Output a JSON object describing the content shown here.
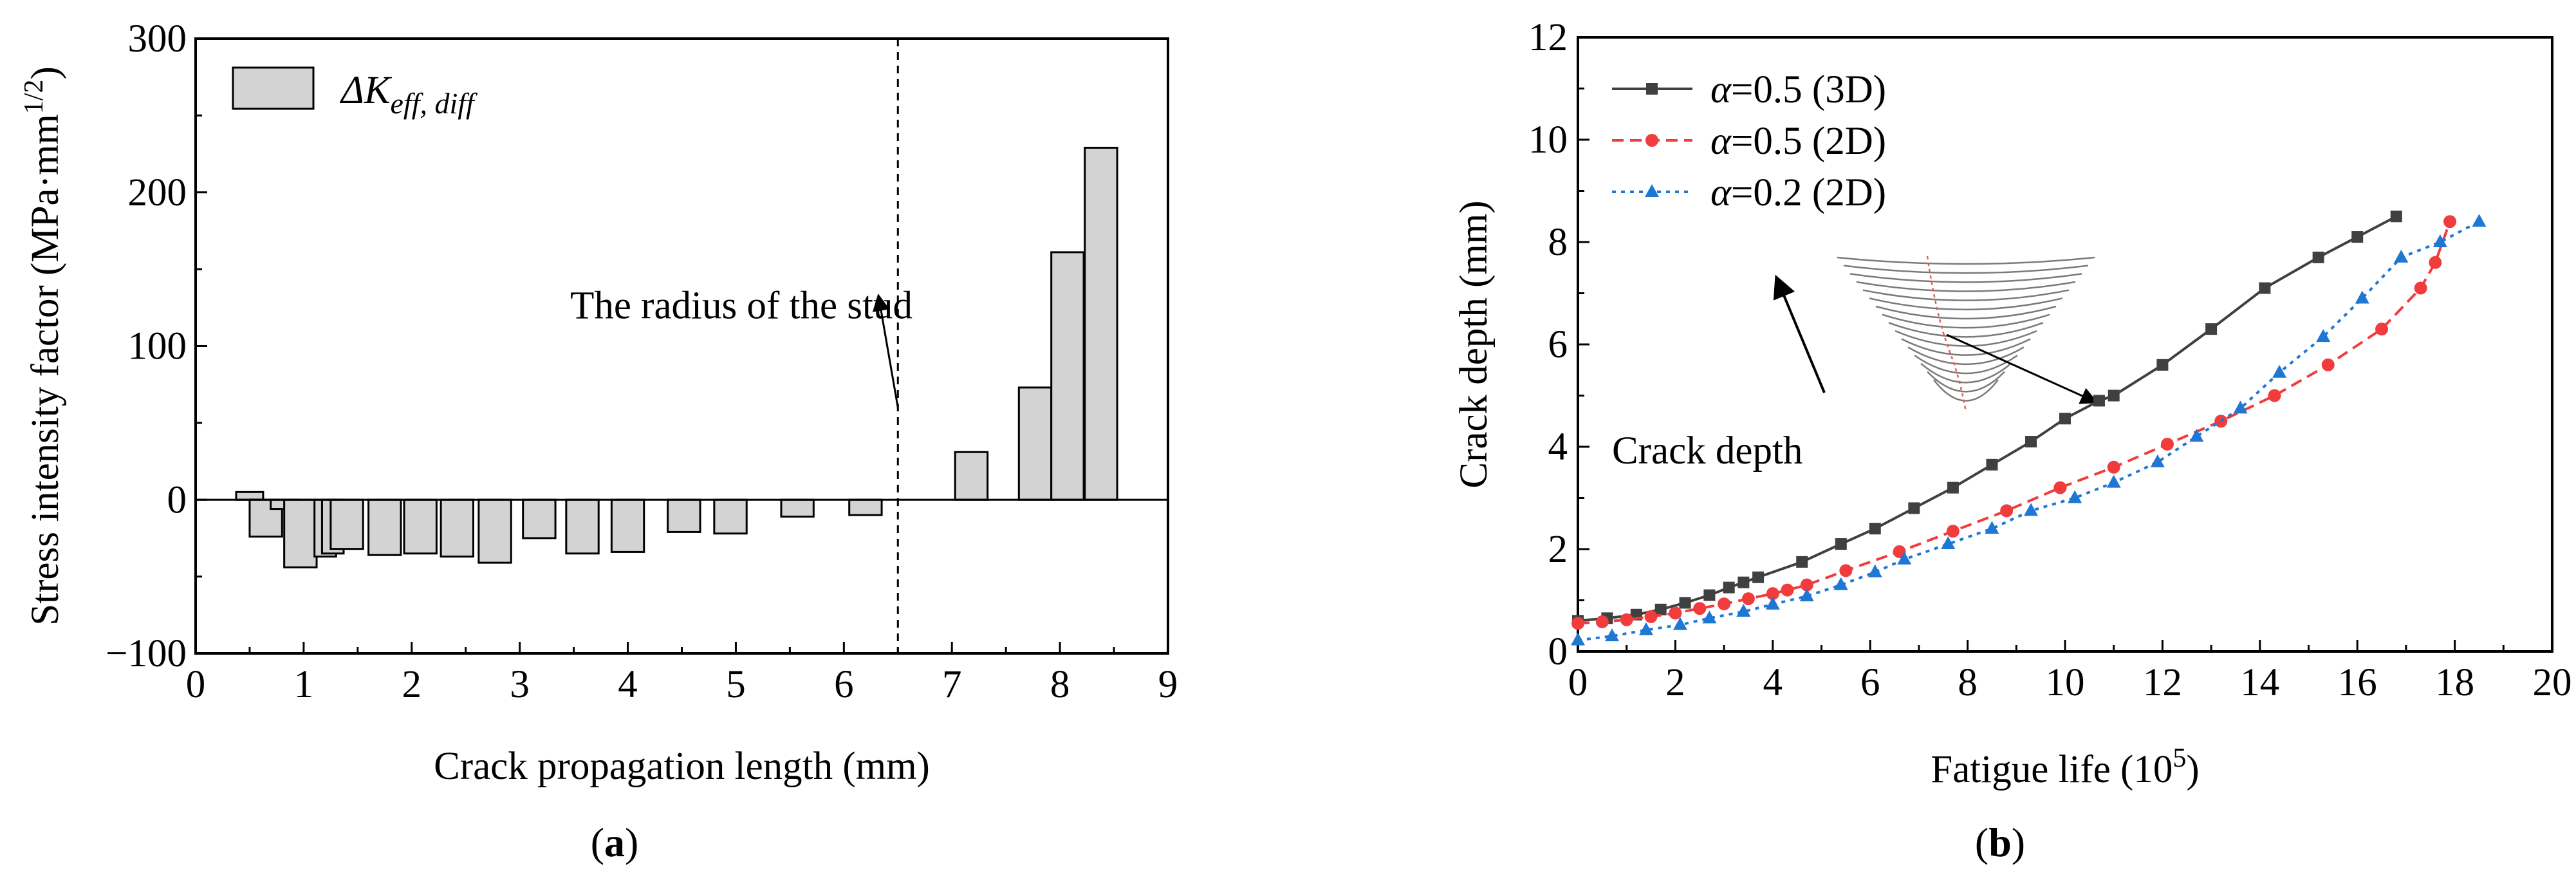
{
  "panel_labels": {
    "a": "(a)",
    "b": "(b)"
  },
  "chart_data": [
    {
      "type": "bar",
      "panel": "(a)",
      "xlabel": "Crack propagation length (mm)",
      "ylabel": "Stress intensity factor (MPa·mm",
      "ylabel_sup": "1/2",
      "ylabel_close": ")",
      "xlim": [
        0,
        9
      ],
      "ylim": [
        -100,
        300
      ],
      "xticks": [
        "0",
        "1",
        "2",
        "3",
        "4",
        "5",
        "6",
        "7",
        "8",
        "9"
      ],
      "yticks": [
        "−100",
        "0",
        "100",
        "200",
        "300"
      ],
      "legend": {
        "symbol": "Δ",
        "main": "K",
        "sub": "eff, diff",
        "position": "top-left"
      },
      "annotation": {
        "text": "The radius of the stud",
        "x_ref": 6.5
      },
      "bars": [
        {
          "x": 0.5,
          "w": 0.25,
          "value": 5
        },
        {
          "x": 0.58,
          "w": 0.15,
          "value": -14
        },
        {
          "x": 0.65,
          "w": 0.3,
          "value": -24
        },
        {
          "x": 0.82,
          "w": 0.25,
          "value": -6
        },
        {
          "x": 0.97,
          "w": 0.3,
          "value": -44
        },
        {
          "x": 1.2,
          "w": 0.2,
          "value": -37
        },
        {
          "x": 1.27,
          "w": 0.2,
          "value": -35
        },
        {
          "x": 1.4,
          "w": 0.3,
          "value": -32
        },
        {
          "x": 1.75,
          "w": 0.3,
          "value": -36
        },
        {
          "x": 2.08,
          "w": 0.3,
          "value": -35
        },
        {
          "x": 2.42,
          "w": 0.3,
          "value": -37
        },
        {
          "x": 2.77,
          "w": 0.3,
          "value": -41
        },
        {
          "x": 3.18,
          "w": 0.3,
          "value": -25
        },
        {
          "x": 3.58,
          "w": 0.3,
          "value": -35
        },
        {
          "x": 4.0,
          "w": 0.3,
          "value": -34
        },
        {
          "x": 4.52,
          "w": 0.3,
          "value": -21
        },
        {
          "x": 4.95,
          "w": 0.3,
          "value": -22
        },
        {
          "x": 5.57,
          "w": 0.3,
          "value": -11
        },
        {
          "x": 6.2,
          "w": 0.3,
          "value": -10
        },
        {
          "x": 7.18,
          "w": 0.3,
          "value": 31
        },
        {
          "x": 7.77,
          "w": 0.3,
          "value": 73
        },
        {
          "x": 8.07,
          "w": 0.3,
          "value": 161
        },
        {
          "x": 8.38,
          "w": 0.3,
          "value": 229
        }
      ]
    },
    {
      "type": "line",
      "panel": "(b)",
      "xlabel": "Fatigue life (10",
      "xlabel_sup": "5",
      "xlabel_close": ")",
      "ylabel": "Crack depth (mm)",
      "xlim": [
        0,
        20
      ],
      "ylim": [
        0,
        12
      ],
      "xticks": [
        "0",
        "2",
        "4",
        "6",
        "8",
        "10",
        "12",
        "14",
        "16",
        "18",
        "20"
      ],
      "yticks": [
        "0",
        "2",
        "4",
        "6",
        "8",
        "10",
        "12"
      ],
      "annotation": {
        "text": "Crack depth"
      },
      "series": [
        {
          "name": "α=0.5 (3D)",
          "symbol": "α",
          "label": "=0.5 (3D)",
          "color": "#404040",
          "marker": "square",
          "dash": "",
          "x": [
            0.0,
            0.6,
            1.2,
            1.7,
            2.2,
            2.7,
            3.1,
            3.4,
            3.7,
            4.6,
            5.4,
            6.1,
            6.9,
            7.7,
            8.5,
            9.3,
            10.0,
            10.7,
            11.0,
            12.0,
            13.0,
            14.1,
            15.2,
            16.0,
            16.8
          ],
          "y": [
            0.6,
            0.65,
            0.72,
            0.82,
            0.95,
            1.1,
            1.25,
            1.35,
            1.45,
            1.75,
            2.1,
            2.4,
            2.8,
            3.2,
            3.65,
            4.1,
            4.55,
            4.9,
            5.0,
            5.6,
            6.3,
            7.1,
            7.7,
            8.1,
            8.5
          ]
        },
        {
          "name": "α=0.5 (2D)",
          "symbol": "α",
          "label": "=0.5 (2D)",
          "color": "#f03c3c",
          "marker": "circle",
          "dash": "18,10",
          "x": [
            0.0,
            0.5,
            1.0,
            1.5,
            2.0,
            2.5,
            3.0,
            3.5,
            4.0,
            4.3,
            4.7,
            5.5,
            6.6,
            7.7,
            8.8,
            9.9,
            11.0,
            12.1,
            13.2,
            14.3,
            15.4,
            16.5,
            17.3,
            17.6,
            17.9
          ],
          "y": [
            0.55,
            0.58,
            0.62,
            0.68,
            0.75,
            0.84,
            0.93,
            1.03,
            1.13,
            1.2,
            1.3,
            1.58,
            1.95,
            2.35,
            2.75,
            3.2,
            3.6,
            4.05,
            4.5,
            5.0,
            5.6,
            6.3,
            7.1,
            7.6,
            8.4
          ]
        },
        {
          "name": "α=0.2 (2D)",
          "symbol": "α",
          "label": "=0.2 (2D)",
          "color": "#1f77d4",
          "marker": "triangle",
          "dash": "6,8",
          "x": [
            0.0,
            0.7,
            1.4,
            2.1,
            2.7,
            3.4,
            4.0,
            4.7,
            5.4,
            6.1,
            6.7,
            7.6,
            8.5,
            9.3,
            10.2,
            11.0,
            11.9,
            12.7,
            13.6,
            14.4,
            15.3,
            16.1,
            16.9,
            17.7,
            18.5
          ],
          "y": [
            0.22,
            0.3,
            0.42,
            0.52,
            0.65,
            0.78,
            0.92,
            1.08,
            1.3,
            1.55,
            1.8,
            2.1,
            2.4,
            2.75,
            3.0,
            3.3,
            3.7,
            4.2,
            4.75,
            5.45,
            6.15,
            6.9,
            7.7,
            8.0,
            8.4
          ]
        }
      ]
    }
  ]
}
